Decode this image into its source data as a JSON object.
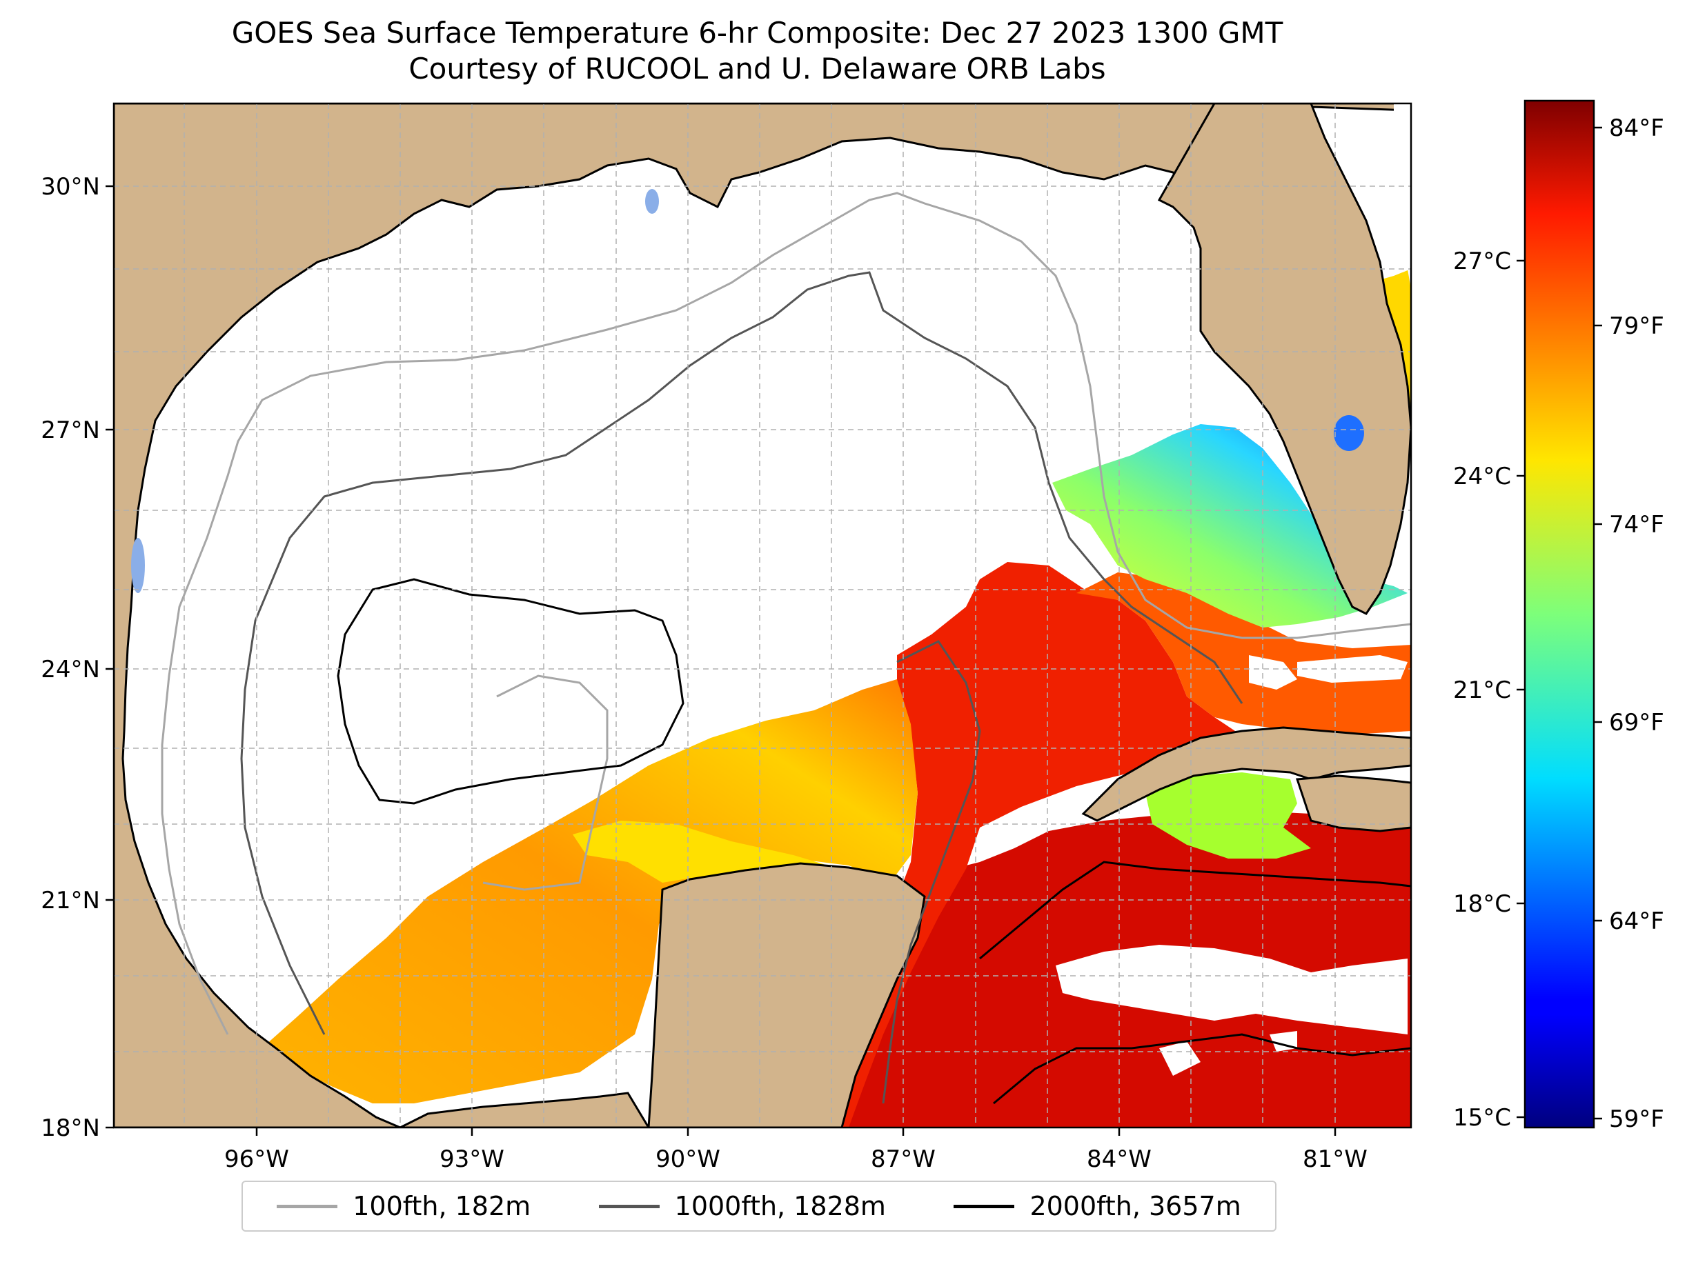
{
  "title": {
    "line1": "GOES Sea Surface Temperature 6-hr Composite: Dec 27 2023 1300 GMT",
    "line2": "Courtesy of RUCOOL and U. Delaware ORB Labs"
  },
  "axes": {
    "lat_ticks": [
      "30°N",
      "27°N",
      "24°N",
      "21°N",
      "18°N"
    ],
    "lon_ticks": [
      "96°W",
      "93°W",
      "90°W",
      "87°W",
      "84°W",
      "81°W"
    ],
    "lat_range": [
      18,
      31
    ],
    "lon_range": [
      -98,
      -80
    ],
    "grid": true
  },
  "colorbar": {
    "celsius_ticks": [
      "27°C",
      "24°C",
      "21°C",
      "18°C",
      "15°C"
    ],
    "fahrenheit_ticks": [
      "84°F",
      "79°F",
      "74°F",
      "69°F",
      "64°F",
      "59°F"
    ],
    "range_f": [
      58.5,
      85
    ],
    "colormap": "jet"
  },
  "legend": {
    "items": [
      {
        "label": "100fth, 182m",
        "color": "#a6a6a6"
      },
      {
        "label": "1000fth, 1828m",
        "color": "#555555"
      },
      {
        "label": "2000fth, 3657m",
        "color": "#000000"
      }
    ]
  },
  "colors": {
    "land": "#d2b48c",
    "ocean_nodata": "#ffffff",
    "warm_caribbean": "#d90000",
    "loop_current": "#f03000",
    "gulf_south": "#ffa000",
    "florida_shelf": "#33c8ff"
  }
}
